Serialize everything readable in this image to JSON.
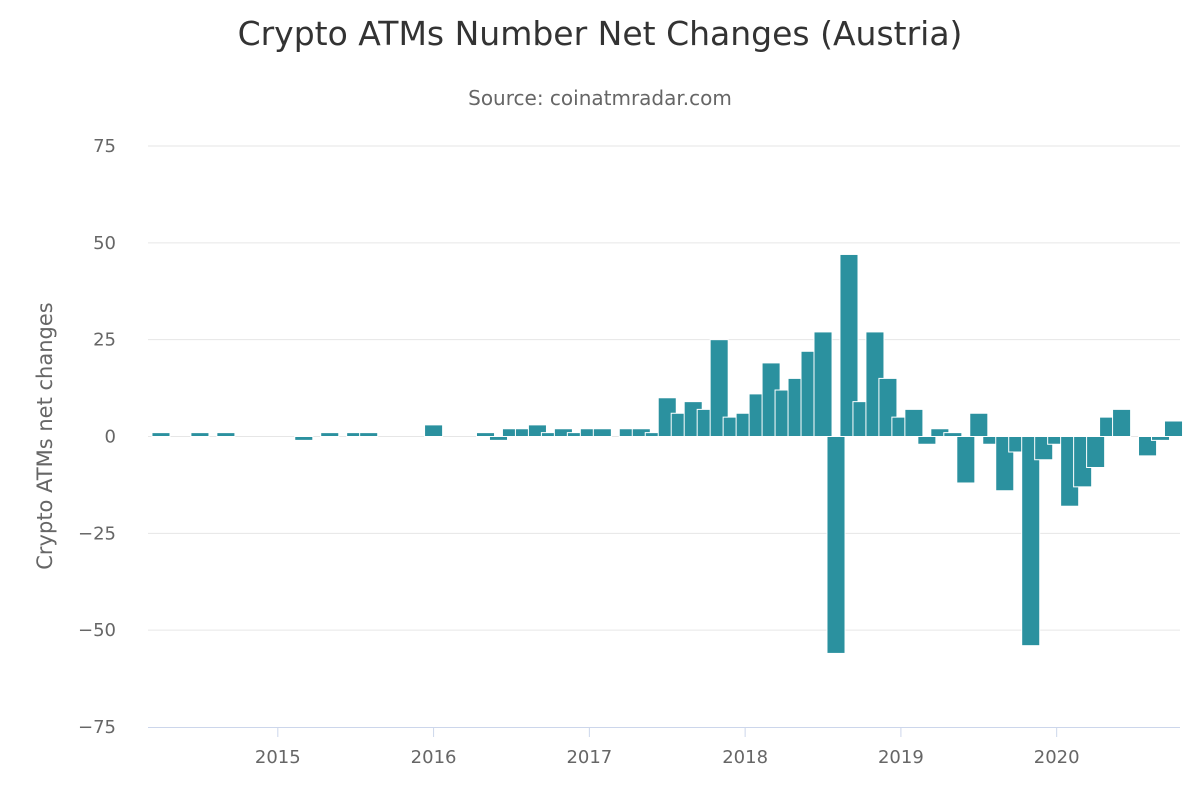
{
  "chart_data": {
    "type": "bar",
    "title": "Crypto ATMs Number Net Changes (Austria)",
    "subtitle": "Source: coinatmradar.com",
    "xlabel": "",
    "ylabel": "Crypto ATMs net changes",
    "ylim": [
      -75,
      75
    ],
    "yticks": [
      75,
      50,
      25,
      0,
      -25,
      -50,
      -75
    ],
    "xticks": [
      "2015",
      "2016",
      "2017",
      "2018",
      "2019",
      "2020"
    ],
    "xlim": [
      "2014-03",
      "2020-10"
    ],
    "grid": true,
    "legend": "none",
    "color": "#2b919f",
    "categories": [
      "2014-04",
      "2014-05",
      "2014-06",
      "2014-07",
      "2014-08",
      "2014-09",
      "2014-10",
      "2014-11",
      "2014-12",
      "2015-01",
      "2015-02",
      "2015-03",
      "2015-04",
      "2015-05",
      "2015-06",
      "2015-07",
      "2015-08",
      "2015-09",
      "2015-10",
      "2015-11",
      "2015-12",
      "2016-01",
      "2016-02",
      "2016-03",
      "2016-04",
      "2016-05",
      "2016-06",
      "2016-07",
      "2016-08",
      "2016-09",
      "2016-10",
      "2016-11",
      "2016-12",
      "2017-01",
      "2017-02",
      "2017-03",
      "2017-04",
      "2017-05",
      "2017-06",
      "2017-07",
      "2017-08",
      "2017-09",
      "2017-10",
      "2017-11",
      "2017-12",
      "2018-01",
      "2018-02",
      "2018-03",
      "2018-04",
      "2018-05",
      "2018-06",
      "2018-07",
      "2018-08",
      "2018-09",
      "2018-10",
      "2018-11",
      "2018-12",
      "2019-01",
      "2019-02",
      "2019-03",
      "2019-04",
      "2019-05",
      "2019-06",
      "2019-07",
      "2019-08",
      "2019-09",
      "2019-10",
      "2019-11",
      "2019-12",
      "2020-01",
      "2020-02",
      "2020-03",
      "2020-04",
      "2020-05",
      "2020-06",
      "2020-07",
      "2020-08",
      "2020-09",
      "2020-10"
    ],
    "values": [
      1,
      0,
      0,
      1,
      0,
      1,
      0,
      0,
      0,
      0,
      0,
      -1,
      0,
      1,
      0,
      1,
      1,
      0,
      0,
      0,
      0,
      3,
      0,
      0,
      0,
      1,
      -1,
      2,
      2,
      3,
      1,
      2,
      1,
      2,
      2,
      0,
      2,
      2,
      1,
      10,
      6,
      9,
      7,
      25,
      5,
      6,
      11,
      19,
      12,
      15,
      22,
      27,
      -56,
      47,
      9,
      27,
      15,
      5,
      7,
      -2,
      2,
      1,
      -12,
      6,
      -2,
      -14,
      -4,
      -54,
      -6,
      -2,
      -18,
      -13,
      -8,
      5,
      7,
      0,
      -5,
      -1,
      4
    ]
  }
}
